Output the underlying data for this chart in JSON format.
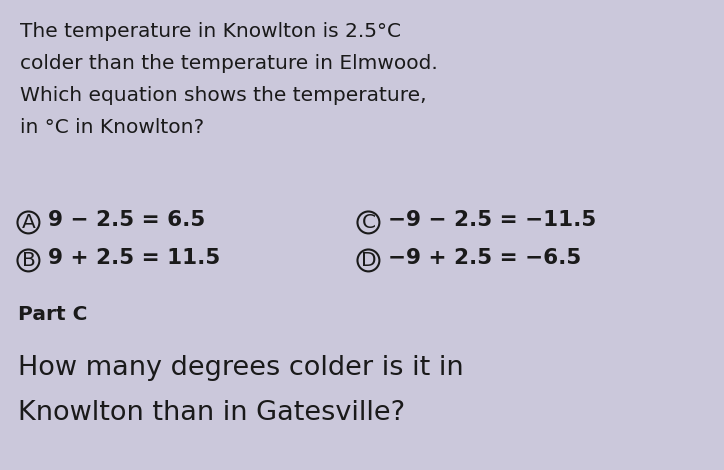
{
  "background_color": "#cbc8db",
  "text_color": "#1a1a1a",
  "line1": "The temperature in Knowlton is 2.5°C",
  "line2": "colder than the temperature in Elmwood.",
  "line3": "Which equation shows the temperature,",
  "line4": "in °C in Knowlton?",
  "optionA_text": "9 − 2.5 = 6.5",
  "optionC_text": "−9 − 2.5 = −11.5",
  "optionB_text": "9 + 2.5 = 11.5",
  "optionD_text": "−9 + 2.5 = −6.5",
  "part_c": "Part C",
  "part_c_q1": "How many degrees colder is it in",
  "part_c_q2": "Knowlton than in Gatesville?",
  "para_fontsize": 14.5,
  "option_fontsize": 15.5,
  "circle_fontsize": 14.5,
  "part_c_fontsize": 14.5,
  "question_fontsize": 19.5,
  "fig_width": 7.24,
  "fig_height": 4.7,
  "dpi": 100
}
